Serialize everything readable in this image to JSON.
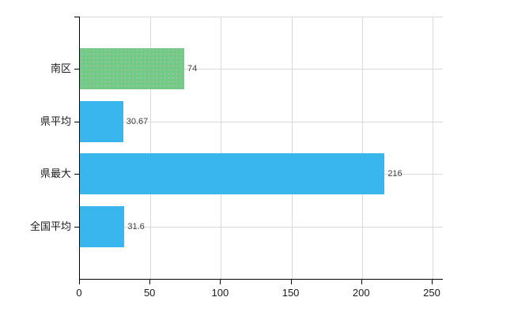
{
  "chart_data": {
    "type": "bar",
    "orientation": "horizontal",
    "title": "",
    "categories": [
      "南区",
      "県平均",
      "県最大",
      "全国平均"
    ],
    "values": [
      74,
      30.67,
      216,
      31.6
    ],
    "value_labels": [
      "74",
      "30.67",
      "216",
      "31.6"
    ],
    "bar_colors": [
      "#6ECD82",
      "#3AB6EF",
      "#3AB6EF",
      "#3AB6EF"
    ],
    "bar_patterns": [
      "dots",
      "solid",
      "solid",
      "solid"
    ],
    "x_ticks": [
      "0",
      "50",
      "100",
      "150",
      "200",
      "250"
    ],
    "x_tick_values": [
      0,
      50,
      100,
      150,
      200,
      250
    ],
    "xlim": [
      0,
      257.3
    ],
    "grid": true,
    "legend": "none",
    "colors": {
      "background": "#ffffff",
      "axis": "#000000",
      "gridline": "#d9d9d9",
      "category_label": "#1a1a1a",
      "tick_label": "#1a1a1a",
      "value_label": "#404040"
    }
  }
}
